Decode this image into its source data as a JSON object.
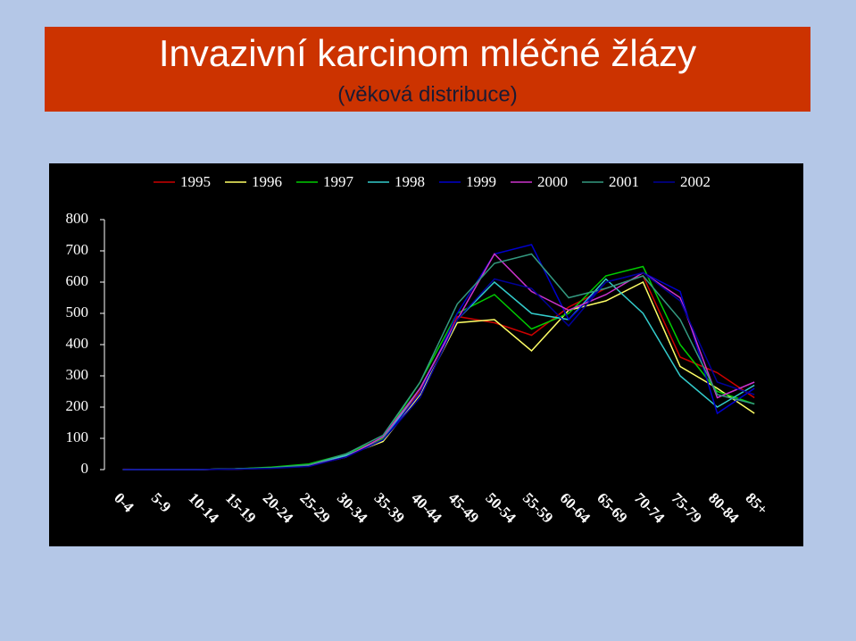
{
  "chart_data": {
    "type": "line",
    "title": "Invazivní karcinom mléčné žlázy",
    "subtitle": "(věková distribuce)",
    "categories": [
      "0-4",
      "5-9",
      "10-14",
      "15-19",
      "20-24",
      "25-29",
      "30-34",
      "35-39",
      "40-44",
      "45-49",
      "50-54",
      "55-59",
      "60-64",
      "65-69",
      "70-74",
      "75-79",
      "80-84",
      "85+"
    ],
    "series": [
      {
        "name": "1995",
        "color": "#cc0000",
        "values": [
          1,
          0,
          0,
          2,
          5,
          12,
          40,
          100,
          250,
          490,
          470,
          430,
          520,
          580,
          620,
          360,
          310,
          230
        ]
      },
      {
        "name": "1996",
        "color": "#ffff66",
        "values": [
          0,
          0,
          0,
          2,
          6,
          15,
          45,
          90,
          240,
          470,
          480,
          380,
          510,
          540,
          600,
          330,
          260,
          180
        ]
      },
      {
        "name": "1997",
        "color": "#00cc00",
        "values": [
          0,
          0,
          0,
          2,
          8,
          18,
          50,
          100,
          280,
          500,
          560,
          450,
          500,
          620,
          650,
          400,
          250,
          210
        ]
      },
      {
        "name": "1998",
        "color": "#33cccc",
        "values": [
          0,
          0,
          0,
          2,
          5,
          14,
          45,
          95,
          260,
          480,
          600,
          500,
          480,
          610,
          500,
          300,
          200,
          270
        ]
      },
      {
        "name": "1999",
        "color": "#0000cc",
        "values": [
          0,
          0,
          0,
          2,
          5,
          12,
          40,
          95,
          245,
          500,
          690,
          720,
          480,
          600,
          630,
          570,
          180,
          260
        ]
      },
      {
        "name": "2000",
        "color": "#cc33cc",
        "values": [
          0,
          0,
          0,
          1,
          5,
          12,
          40,
          105,
          260,
          480,
          690,
          570,
          510,
          560,
          630,
          550,
          230,
          280
        ]
      },
      {
        "name": "2001",
        "color": "#339980",
        "values": [
          0,
          0,
          0,
          2,
          6,
          15,
          50,
          110,
          280,
          530,
          660,
          690,
          550,
          580,
          620,
          480,
          240,
          210
        ]
      },
      {
        "name": "2002",
        "color": "#000099",
        "values": [
          0,
          0,
          0,
          1,
          4,
          10,
          40,
          95,
          230,
          480,
          610,
          580,
          460,
          600,
          630,
          540,
          280,
          240
        ]
      }
    ],
    "ylim": [
      0,
      800
    ],
    "yticks": [
      0,
      100,
      200,
      300,
      400,
      500,
      600,
      700,
      800
    ],
    "grid": false
  }
}
